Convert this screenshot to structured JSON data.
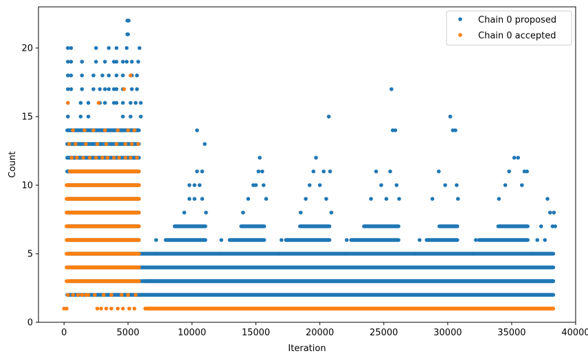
{
  "chart_data": {
    "type": "scatter",
    "xlabel": "Iteration",
    "ylabel": "Count",
    "xlim": [
      -2000,
      40000
    ],
    "ylim": [
      0,
      23
    ],
    "xticks": [
      0,
      5000,
      10000,
      15000,
      20000,
      25000,
      30000,
      35000,
      40000
    ],
    "yticks": [
      0,
      5,
      10,
      15,
      20
    ],
    "grid": false,
    "legend": "top-right",
    "series": [
      {
        "name": "Chain 0 proposed",
        "color": "#1f77b4",
        "segments": [
          {
            "y": 2,
            "x0": 100,
            "x1": 38400
          },
          {
            "y": 3,
            "x0": 300,
            "x1": 38400
          },
          {
            "y": 4,
            "x0": 300,
            "x1": 38400
          },
          {
            "y": 5,
            "x0": 100,
            "x1": 38400
          },
          {
            "y": 6,
            "x0": 100,
            "x1": 6000
          },
          {
            "y": 7,
            "x0": 100,
            "x1": 6000
          },
          {
            "y": 8,
            "x0": 100,
            "x1": 6000
          },
          {
            "y": 9,
            "x0": 100,
            "x1": 6000
          },
          {
            "y": 10,
            "x0": 100,
            "x1": 6000
          },
          {
            "y": 11,
            "x0": 100,
            "x1": 6000
          },
          {
            "y": 12,
            "x0": 100,
            "x1": 6000
          },
          {
            "y": 13,
            "x0": 100,
            "x1": 6000
          },
          {
            "y": 14,
            "x0": 100,
            "x1": 6000
          },
          {
            "y": 6,
            "x0": 7800,
            "x1": 11200
          },
          {
            "y": 6,
            "x0": 12800,
            "x1": 15800
          },
          {
            "y": 6,
            "x0": 17200,
            "x1": 20900
          },
          {
            "y": 6,
            "x0": 22300,
            "x1": 26300
          },
          {
            "y": 6,
            "x0": 28200,
            "x1": 30900
          },
          {
            "y": 6,
            "x0": 32300,
            "x1": 36400
          },
          {
            "y": 7,
            "x0": 8500,
            "x1": 11200
          },
          {
            "y": 7,
            "x0": 13700,
            "x1": 15800
          },
          {
            "y": 7,
            "x0": 18300,
            "x1": 20900
          },
          {
            "y": 7,
            "x0": 23300,
            "x1": 26300
          },
          {
            "y": 7,
            "x0": 29200,
            "x1": 30900
          },
          {
            "y": 7,
            "x0": 33800,
            "x1": 36400
          },
          {
            "y": 3,
            "x0": 6200,
            "x1": 38400
          }
        ],
        "points": [
          [
            300,
            15
          ],
          [
            300,
            16
          ],
          [
            300,
            17
          ],
          [
            300,
            18
          ],
          [
            300,
            19
          ],
          [
            300,
            20
          ],
          [
            550,
            17
          ],
          [
            550,
            18
          ],
          [
            550,
            19
          ],
          [
            550,
            20
          ],
          [
            1300,
            15
          ],
          [
            1300,
            16
          ],
          [
            1400,
            17
          ],
          [
            1400,
            18
          ],
          [
            1400,
            19
          ],
          [
            1900,
            15
          ],
          [
            1900,
            16
          ],
          [
            2300,
            17
          ],
          [
            2300,
            18
          ],
          [
            2500,
            19
          ],
          [
            2500,
            20
          ],
          [
            2800,
            16
          ],
          [
            2800,
            17
          ],
          [
            3000,
            18
          ],
          [
            3200,
            16
          ],
          [
            3200,
            17
          ],
          [
            3200,
            19
          ],
          [
            3500,
            17
          ],
          [
            3500,
            18
          ],
          [
            3500,
            20
          ],
          [
            3900,
            16
          ],
          [
            3900,
            17
          ],
          [
            3900,
            19
          ],
          [
            4100,
            16
          ],
          [
            4100,
            17
          ],
          [
            4100,
            18
          ],
          [
            4100,
            19
          ],
          [
            4100,
            20
          ],
          [
            4600,
            15
          ],
          [
            4600,
            16
          ],
          [
            4600,
            17
          ],
          [
            4600,
            18
          ],
          [
            4600,
            19
          ],
          [
            4900,
            19
          ],
          [
            4900,
            20
          ],
          [
            4950,
            21
          ],
          [
            5000,
            21
          ],
          [
            4950,
            22
          ],
          [
            5050,
            22
          ],
          [
            5200,
            15
          ],
          [
            5200,
            16
          ],
          [
            5300,
            17
          ],
          [
            5300,
            18
          ],
          [
            5300,
            19
          ],
          [
            5600,
            16
          ],
          [
            5700,
            17
          ],
          [
            5700,
            18
          ],
          [
            5800,
            19
          ],
          [
            5900,
            20
          ],
          [
            6000,
            15
          ],
          [
            6000,
            16
          ],
          [
            9400,
            8
          ],
          [
            9800,
            9
          ],
          [
            9800,
            10
          ],
          [
            10200,
            10
          ],
          [
            10200,
            9
          ],
          [
            10400,
            14
          ],
          [
            10400,
            11
          ],
          [
            10600,
            10
          ],
          [
            10800,
            9
          ],
          [
            10800,
            11
          ],
          [
            11000,
            13
          ],
          [
            11100,
            8
          ],
          [
            14400,
            9
          ],
          [
            14800,
            10
          ],
          [
            15000,
            10
          ],
          [
            15200,
            11
          ],
          [
            15300,
            12
          ],
          [
            15500,
            11
          ],
          [
            15600,
            10
          ],
          [
            15800,
            9
          ],
          [
            14000,
            8
          ],
          [
            18500,
            8
          ],
          [
            18900,
            9
          ],
          [
            19200,
            10
          ],
          [
            19500,
            11
          ],
          [
            19700,
            12
          ],
          [
            20000,
            10
          ],
          [
            20300,
            11
          ],
          [
            20500,
            9
          ],
          [
            20700,
            15
          ],
          [
            20800,
            11
          ],
          [
            20900,
            8
          ],
          [
            24000,
            9
          ],
          [
            24400,
            11
          ],
          [
            24800,
            10
          ],
          [
            25200,
            9
          ],
          [
            25500,
            11
          ],
          [
            25600,
            17
          ],
          [
            25700,
            14
          ],
          [
            25900,
            14
          ],
          [
            26000,
            10
          ],
          [
            26200,
            9
          ],
          [
            28800,
            9
          ],
          [
            29300,
            11
          ],
          [
            29800,
            10
          ],
          [
            30200,
            15
          ],
          [
            30400,
            14
          ],
          [
            30600,
            14
          ],
          [
            30700,
            10
          ],
          [
            30800,
            9
          ],
          [
            34000,
            9
          ],
          [
            34500,
            10
          ],
          [
            34800,
            11
          ],
          [
            35200,
            12
          ],
          [
            35500,
            12
          ],
          [
            35800,
            10
          ],
          [
            36000,
            11
          ],
          [
            36200,
            11
          ],
          [
            37800,
            9
          ],
          [
            7200,
            6
          ],
          [
            7300,
            5
          ],
          [
            12300,
            6
          ],
          [
            12100,
            5
          ],
          [
            16800,
            5
          ],
          [
            17000,
            6
          ],
          [
            22000,
            5
          ],
          [
            22100,
            6
          ],
          [
            27500,
            5
          ],
          [
            27800,
            6
          ],
          [
            32000,
            5
          ],
          [
            32200,
            6
          ],
          [
            37000,
            6
          ],
          [
            37300,
            7
          ],
          [
            37600,
            6
          ],
          [
            38000,
            8
          ],
          [
            38200,
            7
          ],
          [
            38300,
            8
          ],
          [
            38400,
            7
          ],
          [
            36700,
            5
          ]
        ]
      },
      {
        "name": "Chain 0 accepted",
        "color": "#ff7f0e",
        "segments": [
          {
            "y": 1,
            "x0": 6200,
            "x1": 38400
          },
          {
            "y": 3,
            "x0": 50,
            "x1": 6000
          },
          {
            "y": 4,
            "x0": 50,
            "x1": 6000
          },
          {
            "y": 5,
            "x0": 50,
            "x1": 6000
          },
          {
            "y": 6,
            "x0": 50,
            "x1": 6000
          },
          {
            "y": 7,
            "x0": 50,
            "x1": 6000
          },
          {
            "y": 8,
            "x0": 50,
            "x1": 6000
          },
          {
            "y": 9,
            "x0": 50,
            "x1": 6000
          },
          {
            "y": 10,
            "x0": 50,
            "x1": 6000
          },
          {
            "y": 11,
            "x0": 300,
            "x1": 6000
          }
        ],
        "points": [
          [
            0,
            1
          ],
          [
            200,
            1
          ],
          [
            2600,
            1
          ],
          [
            2900,
            1
          ],
          [
            3300,
            1
          ],
          [
            3700,
            1
          ],
          [
            4200,
            1
          ],
          [
            4600,
            1
          ],
          [
            5100,
            1
          ],
          [
            5500,
            1
          ],
          [
            300,
            2
          ],
          [
            700,
            2
          ],
          [
            1100,
            2
          ],
          [
            1400,
            2
          ],
          [
            1700,
            2
          ],
          [
            1900,
            2
          ],
          [
            2400,
            2
          ],
          [
            3100,
            2
          ],
          [
            3700,
            2
          ],
          [
            4500,
            2
          ],
          [
            5000,
            2
          ],
          [
            5600,
            2
          ],
          [
            600,
            12
          ],
          [
            1000,
            12
          ],
          [
            1500,
            12
          ],
          [
            2000,
            12
          ],
          [
            2500,
            12
          ],
          [
            3000,
            12
          ],
          [
            3400,
            12
          ],
          [
            3900,
            12
          ],
          [
            4300,
            12
          ],
          [
            4800,
            12
          ],
          [
            5200,
            12
          ],
          [
            5700,
            12
          ],
          [
            400,
            13
          ],
          [
            900,
            13
          ],
          [
            1700,
            13
          ],
          [
            2600,
            13
          ],
          [
            3300,
            13
          ],
          [
            4100,
            13
          ],
          [
            4800,
            13
          ],
          [
            5300,
            13
          ],
          [
            5800,
            13
          ],
          [
            700,
            14
          ],
          [
            1600,
            14
          ],
          [
            2300,
            14
          ],
          [
            3200,
            14
          ],
          [
            4200,
            14
          ],
          [
            5000,
            14
          ],
          [
            5500,
            14
          ],
          [
            300,
            16
          ],
          [
            2700,
            16
          ],
          [
            4700,
            17
          ],
          [
            5200,
            18
          ]
        ]
      }
    ]
  }
}
